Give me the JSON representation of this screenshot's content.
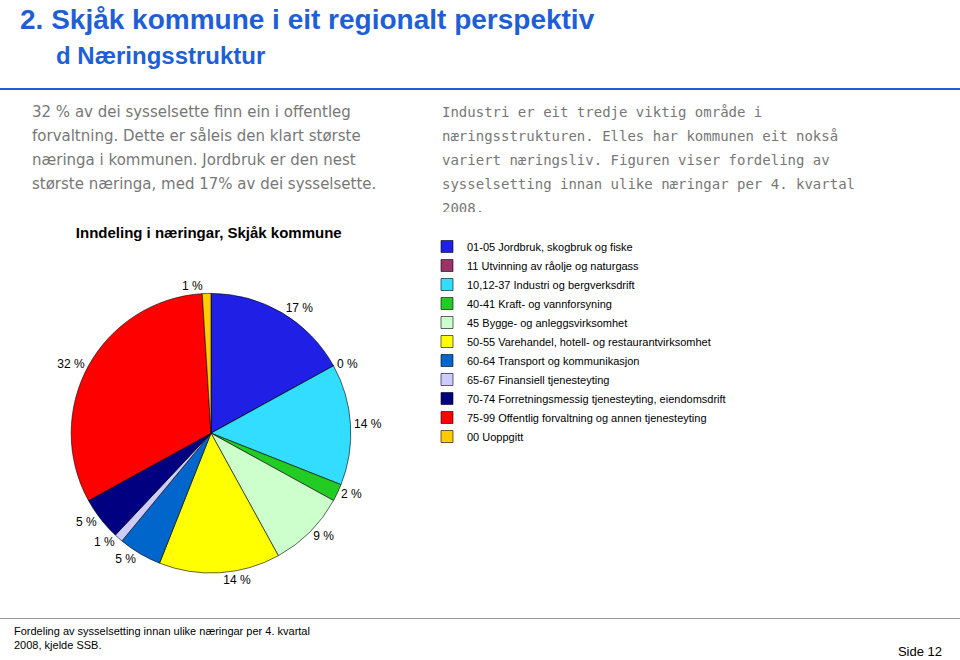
{
  "header": {
    "title": "2. Skjåk kommune i eit regionalt perspektiv",
    "subtitle": "d Næringsstruktur"
  },
  "paragraphs": [
    "32 % av dei sysselsette finn ein i offentleg forvaltning. Dette er såleis den klart største næringa i kommunen. Jordbruk er den nest største næringa, med 17% av dei sysselsette.",
    "Industri er eit tredje viktig område i næringsstrukturen. Elles har kommunen eit nokså variert næringsliv. Figuren viser fordeling av sysselsetting innan ulike næringar per 4. kvartal 2008."
  ],
  "footer": {
    "caption": "Fordeling av sysselsetting innan ulike næringar per 4. kvartal 2008, kjelde SSB.",
    "page": "Side 12"
  },
  "chart_data": {
    "type": "pie",
    "title": "Inndeling i næringar, Skjåk kommune",
    "categories": [
      "01-05 Jordbruk, skogbruk og fiske",
      "11 Utvinning av råolje og naturgass",
      "10,12-37 Industri og bergverksdrift",
      "40-41 Kraft- og vannforsyning",
      "45 Bygge- og anleggsvirksomhet",
      "50-55 Varehandel, hotell- og restaurantvirksomhet",
      "60-64 Transport og kommunikasjon",
      "65-67 Finansiell tjenesteyting",
      "70-74 Forretningsmessig tjenesteyting, eiendomsdrift",
      "75-99 Offentlig forvaltning og annen tjenesteyting",
      "00 Uoppgitt"
    ],
    "values": [
      17,
      0,
      14,
      2,
      9,
      14,
      5,
      1,
      5,
      32,
      1
    ],
    "value_labels": [
      "17 %",
      "0 %",
      "14 %",
      "2 %",
      "9 %",
      "14 %",
      "5 %",
      "1 %",
      "5 %",
      "32 %",
      "1 %"
    ],
    "colors": [
      "#1f1fe6",
      "#993366",
      "#33ddff",
      "#22cc22",
      "#ccffcc",
      "#ffff00",
      "#0066cc",
      "#ccccff",
      "#000080",
      "#ff0000",
      "#ffcc00"
    ],
    "legend": "right",
    "data_labels": true
  }
}
